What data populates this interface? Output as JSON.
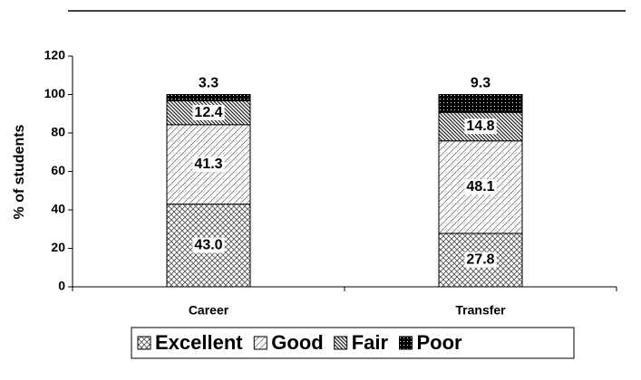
{
  "chart_data": {
    "type": "bar",
    "stacked": true,
    "y_label": "% of students",
    "categories": [
      "Career",
      "Transfer"
    ],
    "series": [
      {
        "name": "Excellent",
        "color": "#000000",
        "values": [
          43.0,
          27.8
        ],
        "value_labels": [
          "43.0",
          "27.8"
        ]
      },
      {
        "name": "Good",
        "color": "#000000",
        "values": [
          41.3,
          48.1
        ],
        "value_labels": [
          "41.3",
          "48.1"
        ]
      },
      {
        "name": "Fair",
        "color": "#000000",
        "values": [
          12.4,
          14.8
        ],
        "value_labels": [
          "12.4",
          "14.8"
        ]
      },
      {
        "name": "Poor",
        "color": "#000000",
        "values": [
          3.3,
          9.3
        ],
        "value_labels": [
          "3.3",
          "9.3"
        ]
      }
    ],
    "ylim": [
      0,
      120
    ],
    "yticks": [
      0,
      20,
      40,
      60,
      80,
      100,
      120
    ],
    "legend": "bottom"
  }
}
